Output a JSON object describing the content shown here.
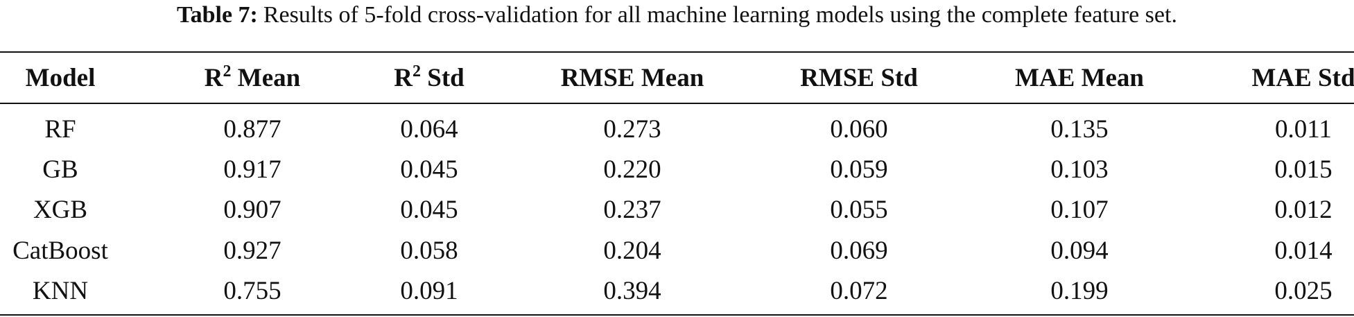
{
  "caption": {
    "label": "Table 7:",
    "text": "Results of 5-fold cross-validation for all machine learning models using the complete feature set."
  },
  "table": {
    "headers": [
      "Model",
      {
        "base": "R",
        "sup": "2",
        "rest": " Mean"
      },
      {
        "base": "R",
        "sup": "2",
        "rest": " Std"
      },
      "RMSE Mean",
      "RMSE Std",
      "MAE Mean",
      "MAE Std"
    ],
    "rows": [
      [
        "RF",
        "0.877",
        "0.064",
        "0.273",
        "0.060",
        "0.135",
        "0.011"
      ],
      [
        "GB",
        "0.917",
        "0.045",
        "0.220",
        "0.059",
        "0.103",
        "0.015"
      ],
      [
        "XGB",
        "0.907",
        "0.045",
        "0.237",
        "0.055",
        "0.107",
        "0.012"
      ],
      [
        "CatBoost",
        "0.927",
        "0.058",
        "0.204",
        "0.069",
        "0.094",
        "0.014"
      ],
      [
        "KNN",
        "0.755",
        "0.091",
        "0.394",
        "0.072",
        "0.199",
        "0.025"
      ]
    ]
  }
}
